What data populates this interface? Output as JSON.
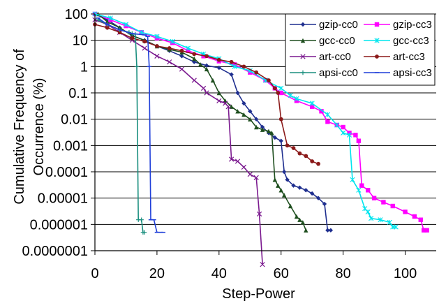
{
  "chart_data": {
    "type": "line",
    "xlabel": "Step-Power",
    "ylabel": "Cumulative Frequency of Occurrence (%)",
    "xlim": [
      0,
      110
    ],
    "ylim": [
      1e-07,
      100
    ],
    "y_scale": "log",
    "x_ticks": [
      0,
      20,
      40,
      60,
      80,
      100
    ],
    "y_ticks": [
      {
        "value": 100,
        "label": "100"
      },
      {
        "value": 10,
        "label": "10"
      },
      {
        "value": 1,
        "label": "1"
      },
      {
        "value": 0.1,
        "label": "0.1"
      },
      {
        "value": 0.01,
        "label": "0.01"
      },
      {
        "value": 0.001,
        "label": "0.001"
      },
      {
        "value": 0.0001,
        "label": "0.0001"
      },
      {
        "value": 1e-05,
        "label": "0.00001"
      },
      {
        "value": 1e-06,
        "label": "0.000001"
      },
      {
        "value": 1e-07,
        "label": "0.0000001"
      }
    ],
    "grid": "horizontal",
    "legend_position": "top-right",
    "series": [
      {
        "name": "gzip-cc0",
        "color": "#1f2f8f",
        "marker": "diamond",
        "points": [
          [
            0,
            100
          ],
          [
            4,
            60
          ],
          [
            8,
            30
          ],
          [
            12,
            15
          ],
          [
            16,
            10
          ],
          [
            20,
            6
          ],
          [
            24,
            4
          ],
          [
            28,
            2.5
          ],
          [
            32,
            1.5
          ],
          [
            36,
            1.1
          ],
          [
            40,
            0.9
          ],
          [
            44,
            0.5
          ],
          [
            46,
            0.1
          ],
          [
            48,
            0.04
          ],
          [
            50,
            0.02
          ],
          [
            52,
            0.01
          ],
          [
            54,
            0.005
          ],
          [
            56,
            0.003
          ],
          [
            58,
            0.002
          ],
          [
            60,
            0.0015
          ],
          [
            61,
            0.0001
          ],
          [
            62,
            5e-05
          ],
          [
            64,
            3e-05
          ],
          [
            66,
            2.5e-05
          ],
          [
            68,
            2e-05
          ],
          [
            70,
            1.5e-05
          ],
          [
            72,
            1e-05
          ],
          [
            74,
            6e-06
          ],
          [
            75,
            6e-07
          ],
          [
            76,
            6e-07
          ]
        ]
      },
      {
        "name": "gzip-cc3",
        "color": "#ff00ff",
        "marker": "square",
        "points": [
          [
            0,
            100
          ],
          [
            5,
            60
          ],
          [
            10,
            35
          ],
          [
            15,
            20
          ],
          [
            20,
            12
          ],
          [
            25,
            8
          ],
          [
            30,
            4
          ],
          [
            35,
            2.5
          ],
          [
            40,
            1.6
          ],
          [
            45,
            1.2
          ],
          [
            50,
            0.6
          ],
          [
            55,
            0.3
          ],
          [
            58,
            0.15
          ],
          [
            60,
            0.1
          ],
          [
            65,
            0.05
          ],
          [
            70,
            0.03
          ],
          [
            73,
            0.02
          ],
          [
            75,
            0.008
          ],
          [
            78,
            0.006
          ],
          [
            80,
            0.005
          ],
          [
            82,
            0.003
          ],
          [
            84,
            0.0025
          ],
          [
            85,
            0.0015
          ],
          [
            86,
            3e-05
          ],
          [
            88,
            2e-05
          ],
          [
            90,
            1e-05
          ],
          [
            93,
            7e-06
          ],
          [
            96,
            5e-06
          ],
          [
            100,
            3e-06
          ],
          [
            103,
            2e-06
          ],
          [
            105,
            1.5e-06
          ],
          [
            106,
            6e-07
          ],
          [
            107,
            6e-07
          ]
        ]
      },
      {
        "name": "gcc-cc0",
        "color": "#1f4f1f",
        "marker": "triangle",
        "points": [
          [
            1,
            100
          ],
          [
            4,
            50
          ],
          [
            8,
            30
          ],
          [
            12,
            15
          ],
          [
            16,
            10
          ],
          [
            20,
            6
          ],
          [
            24,
            4.5
          ],
          [
            28,
            3.5
          ],
          [
            32,
            2
          ],
          [
            34,
            1.2
          ],
          [
            36,
            0.8
          ],
          [
            38,
            0.3
          ],
          [
            40,
            0.1
          ],
          [
            42,
            0.05
          ],
          [
            44,
            0.03
          ],
          [
            46,
            0.02
          ],
          [
            48,
            0.015
          ],
          [
            50,
            0.01
          ],
          [
            52,
            0.005
          ],
          [
            54,
            0.004
          ],
          [
            56,
            0.0035
          ],
          [
            57,
            0.003
          ],
          [
            58,
            5e-05
          ],
          [
            59,
            3e-05
          ],
          [
            60,
            2e-05
          ],
          [
            61,
            1.3e-05
          ],
          [
            63,
            5e-06
          ],
          [
            65,
            2e-06
          ],
          [
            66,
            1.5e-06
          ],
          [
            67,
            1.2e-06
          ],
          [
            68,
            6e-07
          ]
        ]
      },
      {
        "name": "gcc-cc3",
        "color": "#00e5ee",
        "marker": "star",
        "points": [
          [
            0,
            100
          ],
          [
            5,
            70
          ],
          [
            10,
            40
          ],
          [
            15,
            20
          ],
          [
            20,
            14
          ],
          [
            25,
            9
          ],
          [
            30,
            5
          ],
          [
            35,
            3
          ],
          [
            40,
            2
          ],
          [
            45,
            1
          ],
          [
            50,
            0.7
          ],
          [
            55,
            0.3
          ],
          [
            60,
            0.15
          ],
          [
            63,
            0.08
          ],
          [
            65,
            0.06
          ],
          [
            70,
            0.04
          ],
          [
            75,
            0.015
          ],
          [
            78,
            0.006
          ],
          [
            80,
            0.003
          ],
          [
            82,
            0.0025
          ],
          [
            83,
            5e-05
          ],
          [
            85,
            2e-05
          ],
          [
            87,
            4e-06
          ],
          [
            88,
            3e-06
          ],
          [
            89,
            1.7e-06
          ],
          [
            92,
            1.5e-06
          ],
          [
            95,
            1.2e-06
          ],
          [
            96,
            8e-07
          ],
          [
            97,
            8e-07
          ]
        ]
      },
      {
        "name": "art-cc0",
        "color": "#7b1a8f",
        "marker": "x",
        "points": [
          [
            0,
            60
          ],
          [
            4,
            40
          ],
          [
            8,
            20
          ],
          [
            12,
            10
          ],
          [
            16,
            5
          ],
          [
            20,
            2.5
          ],
          [
            24,
            1.5
          ],
          [
            28,
            0.8
          ],
          [
            32,
            0.3
          ],
          [
            35,
            0.15
          ],
          [
            36,
            0.1
          ],
          [
            40,
            0.05
          ],
          [
            42,
            0.04
          ],
          [
            43,
            0.03
          ],
          [
            44,
            0.0003
          ],
          [
            46,
            0.00025
          ],
          [
            48,
            0.00015
          ],
          [
            50,
            8e-05
          ],
          [
            52,
            6e-05
          ],
          [
            53,
            2.5e-06
          ],
          [
            54,
            3e-08
          ]
        ]
      },
      {
        "name": "art-cc3",
        "color": "#8b1a1a",
        "marker": "circle",
        "points": [
          [
            0,
            40
          ],
          [
            4,
            30
          ],
          [
            8,
            20
          ],
          [
            12,
            12
          ],
          [
            16,
            9
          ],
          [
            20,
            6
          ],
          [
            24,
            5
          ],
          [
            28,
            4
          ],
          [
            32,
            3
          ],
          [
            36,
            2.5
          ],
          [
            40,
            1.8
          ],
          [
            44,
            1.5
          ],
          [
            48,
            1
          ],
          [
            52,
            0.6
          ],
          [
            56,
            0.3
          ],
          [
            58,
            0.15
          ],
          [
            59,
            0.1
          ],
          [
            60,
            0.01
          ],
          [
            62,
            0.001
          ],
          [
            64,
            0.0008
          ],
          [
            66,
            0.0005
          ],
          [
            68,
            0.0004
          ],
          [
            70,
            0.00025
          ],
          [
            72,
            0.0002
          ]
        ]
      },
      {
        "name": "apsi-cc0",
        "color": "#1a8f7f",
        "marker": "plus",
        "points": [
          [
            1,
            60
          ],
          [
            4,
            40
          ],
          [
            8,
            25
          ],
          [
            11,
            20
          ],
          [
            12,
            18
          ],
          [
            13,
            17
          ],
          [
            13.5,
            1
          ],
          [
            14,
            1.5e-06
          ],
          [
            15,
            1.5e-06
          ],
          [
            15.5,
            5e-07
          ],
          [
            16,
            5e-07
          ]
        ]
      },
      {
        "name": "apsi-cc3",
        "color": "#1f3fd9",
        "marker": "dash",
        "points": [
          [
            1,
            70
          ],
          [
            4,
            40
          ],
          [
            8,
            25
          ],
          [
            12,
            18
          ],
          [
            16,
            16
          ],
          [
            17,
            14
          ],
          [
            17.5,
            1
          ],
          [
            18,
            1.5e-06
          ],
          [
            19,
            1.5e-06
          ],
          [
            20,
            5e-07
          ],
          [
            22,
            5e-07
          ]
        ]
      }
    ]
  }
}
